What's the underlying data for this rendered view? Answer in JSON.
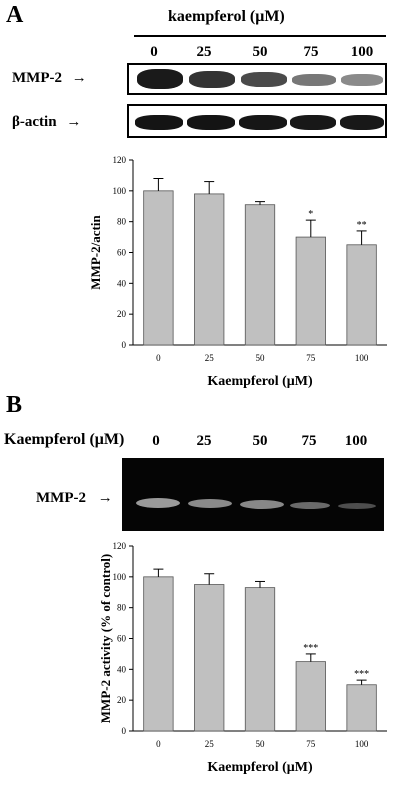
{
  "panelA": {
    "letter": "A",
    "treatment_header": "kaempferol (μM)",
    "lanes": [
      "0",
      "25",
      "50",
      "75",
      "100"
    ],
    "blot_labels": [
      "MMP-2",
      "β-actin"
    ],
    "arrow": "→"
  },
  "panelB": {
    "letter": "B",
    "treatment_header": "Kaempferol (μM)",
    "lanes": [
      "0",
      "25",
      "50",
      "75",
      "100"
    ],
    "gel_label": "MMP-2",
    "arrow": "→"
  },
  "chart_data": [
    {
      "type": "bar",
      "categories": [
        "0",
        "25",
        "50",
        "75",
        "100"
      ],
      "values": [
        100,
        98,
        91,
        70,
        65
      ],
      "errors": [
        8,
        8,
        2,
        11,
        9
      ],
      "significance": [
        "",
        "",
        "",
        "*",
        "**"
      ],
      "xlabel": "Kaempferol (μM)",
      "ylabel": "MMP-2/actin",
      "ylim": [
        0,
        120
      ],
      "yticks": [
        0,
        20,
        40,
        60,
        80,
        100,
        120
      ],
      "bar_color": "#c0c0c0"
    },
    {
      "type": "bar",
      "categories": [
        "0",
        "25",
        "50",
        "75",
        "100"
      ],
      "values": [
        100,
        95,
        93,
        45,
        30
      ],
      "errors": [
        5,
        7,
        4,
        5,
        3
      ],
      "significance": [
        "",
        "",
        "",
        "***",
        "***"
      ],
      "xlabel": "Kaempferol (μM)",
      "ylabel": "MMP-2 activity (% of control)",
      "ylim": [
        0,
        120
      ],
      "yticks": [
        0,
        20,
        40,
        60,
        80,
        100,
        120
      ],
      "bar_color": "#c0c0c0"
    }
  ]
}
